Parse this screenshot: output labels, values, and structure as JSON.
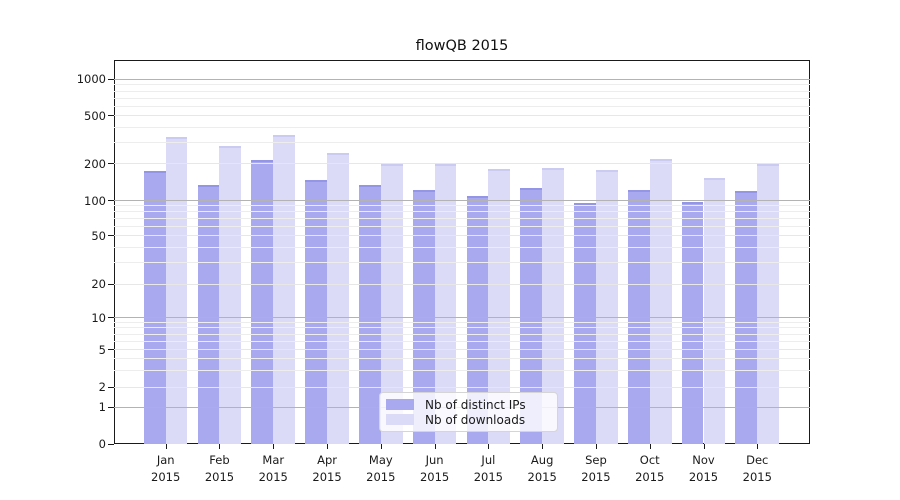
{
  "chart_data": {
    "type": "bar",
    "title": "flowQB 2015",
    "year": "2015",
    "months": [
      "Jan",
      "Feb",
      "Mar",
      "Apr",
      "May",
      "Jun",
      "Jul",
      "Aug",
      "Sep",
      "Oct",
      "Nov",
      "Dec"
    ],
    "categories": [
      "Jan 2015",
      "Feb 2015",
      "Mar 2015",
      "Apr 2015",
      "May 2015",
      "Jun 2015",
      "Jul 2015",
      "Aug 2015",
      "Sep 2015",
      "Oct 2015",
      "Nov 2015",
      "Dec 2015"
    ],
    "series": [
      {
        "name": "Nb of distinct IPs",
        "color": "#a9a9f0",
        "values": [
          175,
          134,
          215,
          146,
          134,
          122,
          108,
          127,
          96,
          123,
          98,
          120
        ]
      },
      {
        "name": "Nb of downloads",
        "color": "#dbdbf8",
        "values": [
          335,
          280,
          350,
          244,
          197,
          200,
          182,
          186,
          178,
          220,
          152,
          200
        ]
      }
    ],
    "yticks": [
      0,
      1,
      2,
      5,
      10,
      20,
      50,
      100,
      200,
      500,
      1000
    ],
    "ytick_labels": [
      "0",
      "1",
      "2",
      "5",
      "10",
      "20",
      "50",
      "100",
      "200",
      "500",
      "1000"
    ],
    "scale": "quasi-log (0 baseline, log-spaced labeled ticks 1-2-5 per decade)",
    "ylim": [
      0,
      1450
    ],
    "grid": "horizontal major (decades darker) + minor log lines",
    "legend_position": "lower center",
    "legend_entries": [
      "Nb of distinct IPs",
      "Nb of downloads"
    ]
  },
  "colors": {
    "series1": "#a9a9f0",
    "series2": "#dbdbf8",
    "grid_decade": "#b3b3b3",
    "grid_minor": "#ededed",
    "spine": "#1a1a1a",
    "background": "#ffffff"
  }
}
